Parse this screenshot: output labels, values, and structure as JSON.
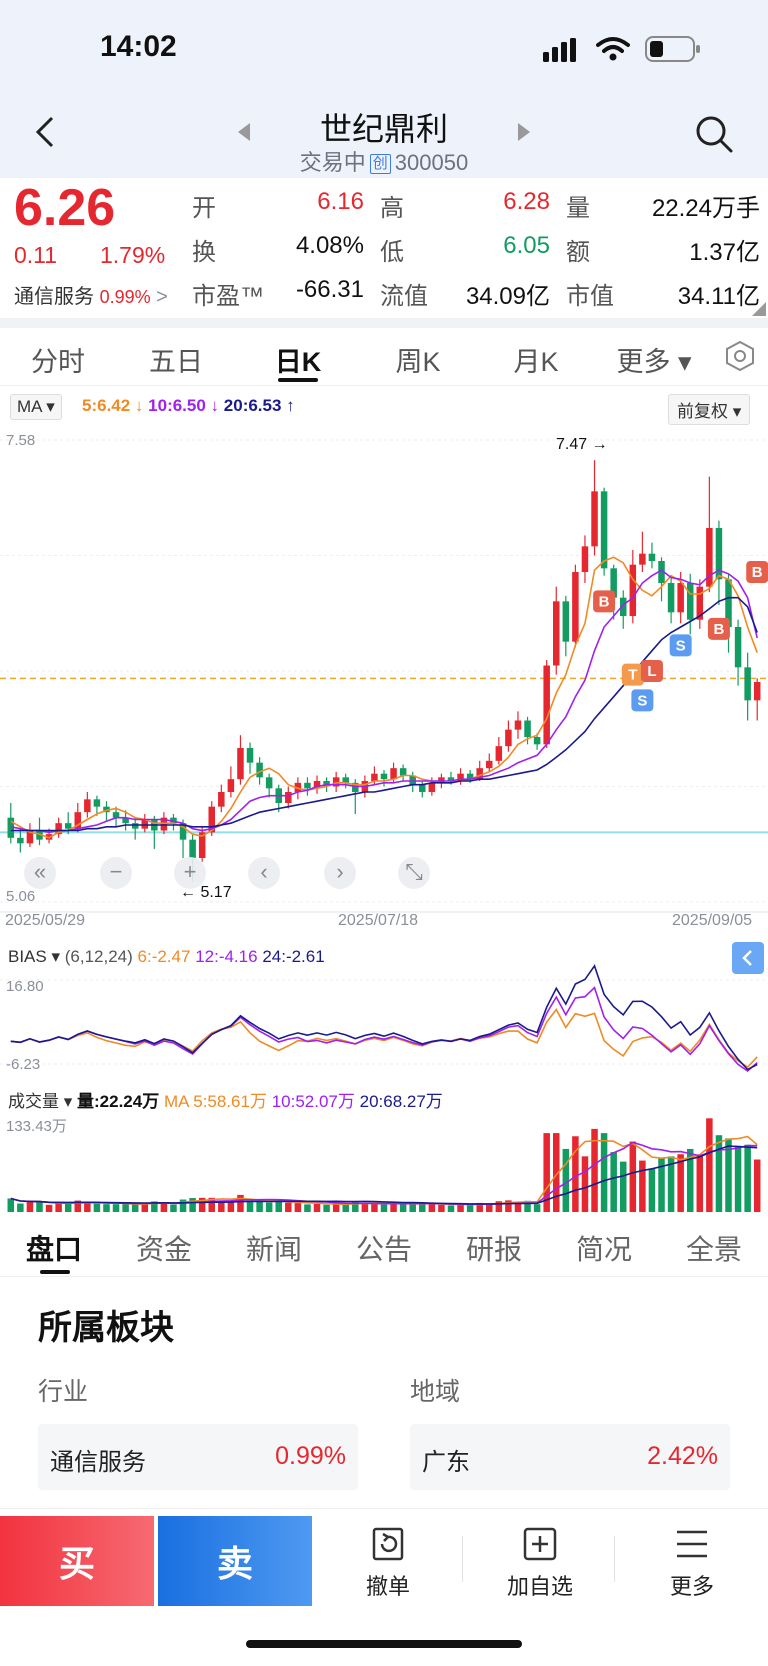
{
  "status_bar": {
    "time": "14:02"
  },
  "header": {
    "title": "世纪鼎利",
    "status": "交易中",
    "board_tag": "创",
    "code": "300050"
  },
  "quote": {
    "price": "6.26",
    "change": "0.11",
    "change_pct": "1.79%",
    "sector_name": "通信服务",
    "sector_pct": "0.99%",
    "rows": [
      [
        {
          "label": "开",
          "value": "6.16",
          "color": "red"
        },
        {
          "label": "高",
          "value": "6.28",
          "color": "red"
        },
        {
          "label": "量",
          "value": "22.24万手",
          "color": "black"
        }
      ],
      [
        {
          "label": "换",
          "value": "4.08%",
          "color": "black"
        },
        {
          "label": "低",
          "value": "6.05",
          "color": "green"
        },
        {
          "label": "额",
          "value": "1.37亿",
          "color": "black"
        }
      ],
      [
        {
          "label": "市盈™",
          "value": "-66.31",
          "color": "black"
        },
        {
          "label": "流值",
          "value": "34.09亿",
          "color": "black"
        },
        {
          "label": "市值",
          "value": "34.11亿",
          "color": "black"
        }
      ]
    ]
  },
  "chart_tabs": [
    {
      "label": "分时",
      "active": false
    },
    {
      "label": "五日",
      "active": false
    },
    {
      "label": "日K",
      "active": true
    },
    {
      "label": "周K",
      "active": false
    },
    {
      "label": "月K",
      "active": false
    },
    {
      "label": "更多 ▾",
      "active": false
    }
  ],
  "ma_legend": {
    "selector": "MA ▾",
    "ma5": "5:6.42",
    "ma10": "10:6.50",
    "ma20": "20:6.53",
    "adjust": "前复权 ▾"
  },
  "chart_data": {
    "type": "candlestick",
    "y_max_label": "7.58",
    "y_min_label": "5.06",
    "high_marker": "7.47",
    "low_marker": "5.17",
    "dates": [
      "2025/05/29",
      "2025/07/18",
      "2025/09/05"
    ],
    "candles": [
      [
        5.52,
        5.41,
        5.6,
        5.38
      ],
      [
        5.41,
        5.38,
        5.47,
        5.33
      ],
      [
        5.38,
        5.45,
        5.49,
        5.36
      ],
      [
        5.45,
        5.4,
        5.52,
        5.37
      ],
      [
        5.4,
        5.43,
        5.46,
        5.38
      ],
      [
        5.43,
        5.49,
        5.52,
        5.41
      ],
      [
        5.49,
        5.46,
        5.55,
        5.43
      ],
      [
        5.46,
        5.55,
        5.6,
        5.44
      ],
      [
        5.55,
        5.62,
        5.66,
        5.52
      ],
      [
        5.62,
        5.58,
        5.64,
        5.53
      ],
      [
        5.58,
        5.55,
        5.61,
        5.5
      ],
      [
        5.55,
        5.52,
        5.58,
        5.47
      ],
      [
        5.52,
        5.49,
        5.56,
        5.45
      ],
      [
        5.49,
        5.46,
        5.52,
        5.4
      ],
      [
        5.46,
        5.51,
        5.54,
        5.44
      ],
      [
        5.51,
        5.45,
        5.53,
        5.35
      ],
      [
        5.45,
        5.52,
        5.55,
        5.43
      ],
      [
        5.52,
        5.49,
        5.54,
        5.45
      ],
      [
        5.49,
        5.4,
        5.51,
        5.3
      ],
      [
        5.4,
        5.3,
        5.43,
        5.17
      ],
      [
        5.3,
        5.44,
        5.47,
        5.28
      ],
      [
        5.44,
        5.58,
        5.61,
        5.42
      ],
      [
        5.58,
        5.66,
        5.7,
        5.55
      ],
      [
        5.66,
        5.73,
        5.8,
        5.63
      ],
      [
        5.73,
        5.9,
        5.97,
        5.7
      ],
      [
        5.9,
        5.82,
        5.93,
        5.76
      ],
      [
        5.82,
        5.74,
        5.85,
        5.7
      ],
      [
        5.74,
        5.68,
        5.76,
        5.63
      ],
      [
        5.68,
        5.6,
        5.7,
        5.55
      ],
      [
        5.6,
        5.66,
        5.69,
        5.57
      ],
      [
        5.66,
        5.71,
        5.74,
        5.62
      ],
      [
        5.71,
        5.68,
        5.74,
        5.64
      ],
      [
        5.68,
        5.72,
        5.75,
        5.65
      ],
      [
        5.72,
        5.69,
        5.74,
        5.66
      ],
      [
        5.69,
        5.74,
        5.77,
        5.66
      ],
      [
        5.74,
        5.71,
        5.76,
        5.68
      ],
      [
        5.71,
        5.66,
        5.73,
        5.54
      ],
      [
        5.66,
        5.72,
        5.75,
        5.63
      ],
      [
        5.72,
        5.76,
        5.8,
        5.7
      ],
      [
        5.76,
        5.73,
        5.78,
        5.69
      ],
      [
        5.73,
        5.79,
        5.82,
        5.71
      ],
      [
        5.79,
        5.75,
        5.81,
        5.72
      ],
      [
        5.75,
        5.7,
        5.77,
        5.66
      ],
      [
        5.7,
        5.66,
        5.72,
        5.63
      ],
      [
        5.66,
        5.71,
        5.74,
        5.64
      ],
      [
        5.71,
        5.74,
        5.76,
        5.68
      ],
      [
        5.74,
        5.72,
        5.77,
        5.7
      ],
      [
        5.72,
        5.76,
        5.79,
        5.7
      ],
      [
        5.76,
        5.73,
        5.78,
        5.71
      ],
      [
        5.73,
        5.79,
        5.83,
        5.72
      ],
      [
        5.79,
        5.83,
        5.87,
        5.77
      ],
      [
        5.83,
        5.91,
        5.96,
        5.81
      ],
      [
        5.91,
        6.0,
        6.05,
        5.88
      ],
      [
        6.0,
        6.05,
        6.1,
        5.95
      ],
      [
        6.05,
        5.96,
        6.07,
        5.92
      ],
      [
        5.96,
        5.92,
        5.98,
        5.89
      ],
      [
        5.92,
        6.35,
        6.38,
        5.9
      ],
      [
        6.35,
        6.7,
        6.78,
        6.3
      ],
      [
        6.7,
        6.48,
        6.73,
        6.4
      ],
      [
        6.48,
        6.86,
        6.9,
        6.45
      ],
      [
        6.86,
        7.0,
        7.06,
        6.8
      ],
      [
        7.0,
        7.3,
        7.47,
        6.95
      ],
      [
        7.3,
        6.88,
        7.32,
        6.84
      ],
      [
        6.88,
        6.72,
        6.9,
        6.6
      ],
      [
        6.72,
        6.62,
        6.76,
        6.55
      ],
      [
        6.62,
        6.9,
        6.98,
        6.58
      ],
      [
        6.9,
        6.96,
        7.08,
        6.86
      ],
      [
        6.96,
        6.92,
        7.02,
        6.88
      ],
      [
        6.92,
        6.8,
        6.94,
        6.7
      ],
      [
        6.8,
        6.64,
        6.84,
        6.58
      ],
      [
        6.64,
        6.8,
        6.86,
        6.58
      ],
      [
        6.8,
        6.6,
        6.85,
        6.52
      ],
      [
        6.6,
        6.78,
        6.82,
        6.55
      ],
      [
        6.78,
        7.1,
        7.38,
        6.75
      ],
      [
        7.1,
        6.82,
        7.14,
        6.68
      ],
      [
        6.82,
        6.56,
        6.85,
        6.42
      ],
      [
        6.56,
        6.34,
        6.6,
        6.24
      ],
      [
        6.34,
        6.16,
        6.42,
        6.05
      ],
      [
        6.16,
        6.26,
        6.28,
        6.05
      ]
    ],
    "ma5": [
      5.5,
      5.47,
      5.44,
      5.43,
      5.41,
      5.44,
      5.45,
      5.48,
      5.51,
      5.54,
      5.56,
      5.57,
      5.55,
      5.52,
      5.51,
      5.49,
      5.49,
      5.49,
      5.47,
      5.43,
      5.42,
      5.45,
      5.5,
      5.57,
      5.66,
      5.74,
      5.77,
      5.79,
      5.76,
      5.7,
      5.68,
      5.67,
      5.68,
      5.69,
      5.71,
      5.71,
      5.7,
      5.7,
      5.72,
      5.72,
      5.73,
      5.75,
      5.75,
      5.73,
      5.72,
      5.71,
      5.71,
      5.72,
      5.73,
      5.75,
      5.77,
      5.8,
      5.85,
      5.92,
      5.95,
      5.97,
      6.06,
      6.2,
      6.3,
      6.46,
      6.58,
      6.87,
      6.92,
      6.94,
      6.91,
      6.82,
      6.76,
      6.73,
      6.78,
      6.84,
      6.81,
      6.74,
      6.74,
      6.77,
      6.84,
      6.82,
      6.73,
      6.56,
      6.42
    ],
    "ma10": [
      5.47,
      5.46,
      5.45,
      5.45,
      5.44,
      5.45,
      5.45,
      5.46,
      5.47,
      5.48,
      5.5,
      5.52,
      5.52,
      5.51,
      5.51,
      5.51,
      5.51,
      5.5,
      5.49,
      5.46,
      5.45,
      5.46,
      5.48,
      5.51,
      5.56,
      5.61,
      5.63,
      5.64,
      5.64,
      5.64,
      5.66,
      5.67,
      5.69,
      5.7,
      5.7,
      5.7,
      5.69,
      5.69,
      5.7,
      5.71,
      5.71,
      5.72,
      5.72,
      5.72,
      5.72,
      5.72,
      5.72,
      5.73,
      5.73,
      5.74,
      5.75,
      5.77,
      5.79,
      5.82,
      5.84,
      5.86,
      5.92,
      6.0,
      6.07,
      6.18,
      6.27,
      6.43,
      6.56,
      6.62,
      6.68,
      6.72,
      6.8,
      6.84,
      6.87,
      6.83,
      6.82,
      6.8,
      6.79,
      6.84,
      6.87,
      6.85,
      6.81,
      6.72,
      6.5
    ],
    "ma20": [
      5.45,
      5.45,
      5.45,
      5.45,
      5.45,
      5.45,
      5.45,
      5.45,
      5.46,
      5.46,
      5.47,
      5.47,
      5.48,
      5.48,
      5.48,
      5.48,
      5.48,
      5.48,
      5.48,
      5.47,
      5.47,
      5.47,
      5.48,
      5.49,
      5.51,
      5.53,
      5.55,
      5.56,
      5.57,
      5.58,
      5.59,
      5.6,
      5.61,
      5.62,
      5.63,
      5.64,
      5.65,
      5.66,
      5.66,
      5.67,
      5.68,
      5.69,
      5.7,
      5.7,
      5.71,
      5.71,
      5.71,
      5.72,
      5.72,
      5.73,
      5.73,
      5.74,
      5.75,
      5.76,
      5.77,
      5.78,
      5.81,
      5.85,
      5.89,
      5.94,
      5.99,
      6.06,
      6.12,
      6.18,
      6.24,
      6.3,
      6.37,
      6.43,
      6.49,
      6.53,
      6.56,
      6.59,
      6.62,
      6.66,
      6.7,
      6.72,
      6.72,
      6.67,
      6.53
    ],
    "reference_line": 6.28,
    "support_line": 5.44,
    "signals": [
      "B",
      "B",
      "T",
      "L",
      "S",
      "S",
      "B"
    ]
  },
  "bias": {
    "selector": "BIAS ▾",
    "params": "(6,12,24)",
    "b6": "6:-2.47",
    "b12": "12:-4.16",
    "b24": "24:-2.61",
    "max": "16.80",
    "min": "-6.23"
  },
  "volume": {
    "selector": "成交量 ▾",
    "vol": "量:22.24万",
    "ma_label": "MA",
    "ma5": "5:58.61万",
    "ma10": "10:52.07万",
    "ma20": "20:68.27万",
    "max": "133.43万"
  },
  "bottom_tabs": [
    {
      "label": "盘口",
      "active": true
    },
    {
      "label": "资金",
      "active": false
    },
    {
      "label": "新闻",
      "active": false
    },
    {
      "label": "公告",
      "active": false
    },
    {
      "label": "研报",
      "active": false
    },
    {
      "label": "简况",
      "active": false
    },
    {
      "label": "全景",
      "active": false
    }
  ],
  "sector_section": {
    "title": "所属板块",
    "industry_label": "行业",
    "industry_name": "通信服务",
    "industry_pct": "0.99%",
    "region_label": "地域",
    "region_name": "广东",
    "region_pct": "2.42%"
  },
  "action_bar": {
    "buy": "买",
    "sell": "卖",
    "cancel": "撤单",
    "watch": "加自选",
    "more": "更多"
  },
  "colors": {
    "up": "#e5282f",
    "down": "#129c61",
    "ma5": "#f08a24",
    "ma10": "#a020f0",
    "ma20": "#1a1a8c",
    "accent": "#1e88e5",
    "bias_tab": "#2f8bf0"
  }
}
